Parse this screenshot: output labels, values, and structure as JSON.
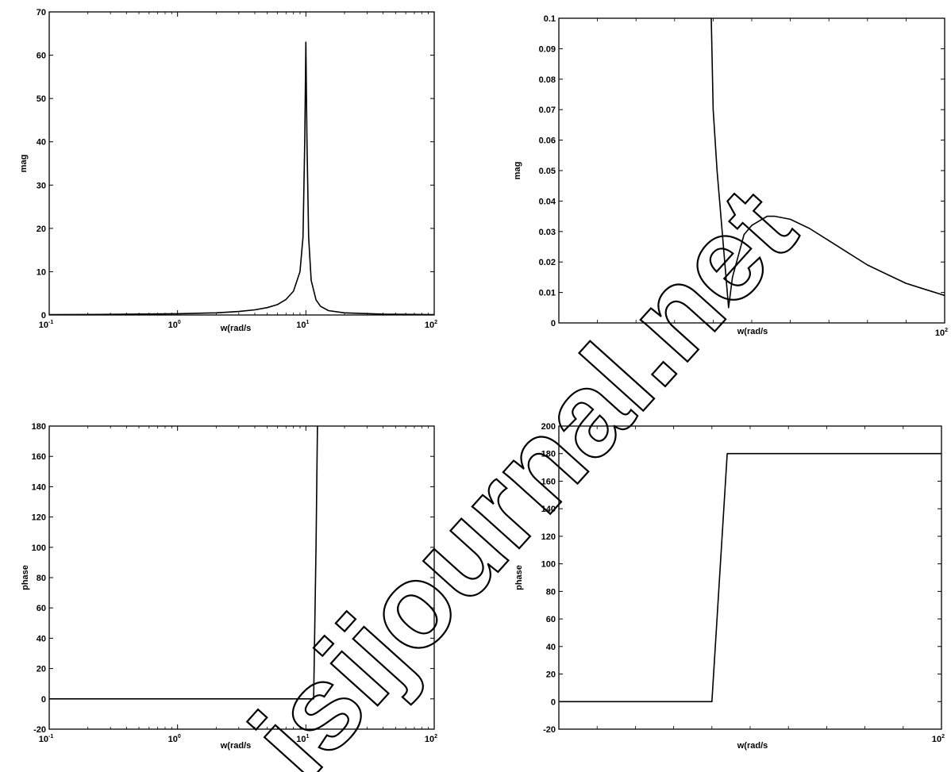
{
  "chart_data": [
    {
      "type": "line",
      "id": "p1",
      "xscale": "log",
      "xlim": [
        0.1,
        100
      ],
      "ylim": [
        0,
        70
      ],
      "xlabel": "w(rad/s",
      "ylabel": "mag",
      "xticks": [
        {
          "value": 0.1,
          "base": "10",
          "exp": "-1"
        },
        {
          "value": 1,
          "base": "10",
          "exp": "0"
        },
        {
          "value": 10,
          "base": "10",
          "exp": "1"
        },
        {
          "value": 100,
          "base": "10",
          "exp": "2"
        }
      ],
      "yticks": [
        0,
        10,
        20,
        30,
        40,
        50,
        60,
        70
      ],
      "x": [
        0.1,
        0.3,
        1,
        2,
        3,
        4,
        5,
        6,
        7,
        8,
        9,
        9.5,
        9.8,
        10,
        10.2,
        10.5,
        11,
        12,
        13,
        15,
        20,
        40,
        100
      ],
      "y": [
        0.1,
        0.15,
        0.3,
        0.5,
        0.8,
        1.2,
        1.7,
        2.4,
        3.6,
        5.5,
        10,
        18,
        40,
        63,
        40,
        18,
        8,
        3.5,
        2,
        1,
        0.5,
        0.2,
        0.1
      ]
    },
    {
      "type": "line",
      "id": "p2",
      "xscale": "linear",
      "xlim": [
        0,
        100
      ],
      "ylim": [
        0,
        0.1
      ],
      "xlabel": "w(rad/s",
      "ylabel": "mag",
      "xticks": [
        {
          "value": 100,
          "base": "10",
          "exp": "2"
        }
      ],
      "xtick_marks": [
        10,
        20,
        30,
        40,
        50,
        60,
        70,
        80,
        90
      ],
      "yticks": [
        0,
        0.01,
        0.02,
        0.03,
        0.04,
        0.05,
        0.06,
        0.07,
        0.08,
        0.09,
        0.1
      ],
      "x": [
        39.5,
        40,
        41,
        44,
        45,
        48,
        50,
        54,
        56,
        60,
        65,
        70,
        75,
        80,
        85,
        90,
        95,
        100
      ],
      "y": [
        0.1,
        0.07,
        0.05,
        0.005,
        0.015,
        0.029,
        0.032,
        0.035,
        0.035,
        0.034,
        0.031,
        0.027,
        0.023,
        0.019,
        0.016,
        0.013,
        0.011,
        0.009
      ]
    },
    {
      "type": "line",
      "id": "p3",
      "xscale": "log",
      "xlim": [
        0.1,
        100
      ],
      "ylim": [
        -20,
        180
      ],
      "xlabel": "w(rad/s",
      "ylabel": "phase",
      "xticks": [
        {
          "value": 0.1,
          "base": "10",
          "exp": "-1"
        },
        {
          "value": 1,
          "base": "10",
          "exp": "0"
        },
        {
          "value": 10,
          "base": "10",
          "exp": "1"
        },
        {
          "value": 100,
          "base": "10",
          "exp": "2"
        }
      ],
      "yticks": [
        -20,
        0,
        20,
        40,
        60,
        80,
        100,
        120,
        140,
        160,
        180
      ],
      "x": [
        0.1,
        1,
        5,
        10,
        11.5,
        12,
        12.3
      ],
      "y": [
        0,
        0,
        0,
        0,
        0,
        100,
        180
      ]
    },
    {
      "type": "line",
      "id": "p4",
      "xscale": "linear",
      "xlim": [
        0,
        100
      ],
      "ylim": [
        -20,
        200
      ],
      "xlabel": "w(rad/s",
      "ylabel": "phase",
      "xticks": [
        {
          "value": 100,
          "base": "10",
          "exp": "2"
        }
      ],
      "xtick_marks": [
        10,
        20,
        30,
        40,
        50,
        60,
        70,
        80,
        90
      ],
      "yticks": [
        -20,
        0,
        20,
        40,
        60,
        80,
        100,
        120,
        140,
        160,
        180,
        200
      ],
      "x": [
        0,
        20,
        40,
        44,
        50,
        80,
        100
      ],
      "y": [
        0,
        0,
        0,
        180,
        180,
        180,
        180
      ]
    }
  ],
  "watermark": {
    "text": "isijournal.net"
  }
}
